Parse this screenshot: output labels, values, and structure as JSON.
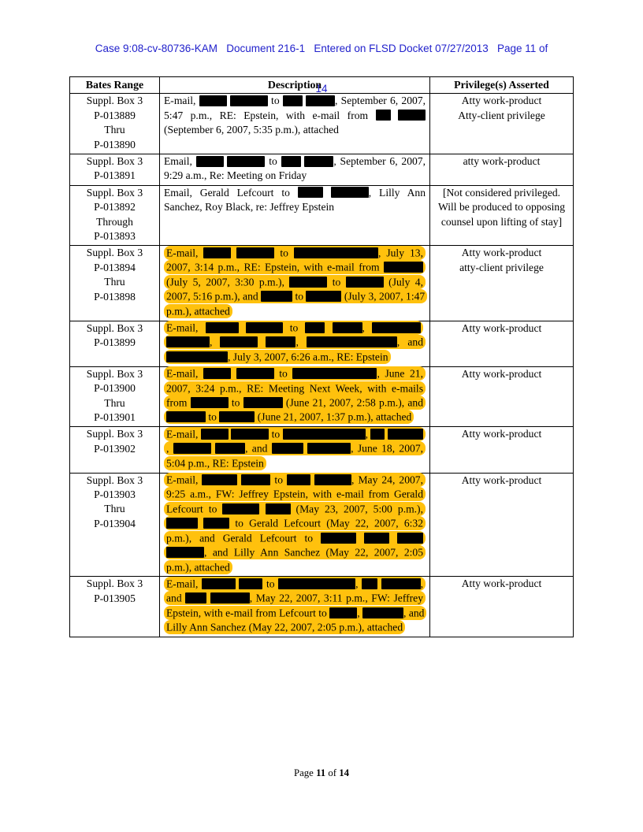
{
  "colors": {
    "header_blue": "#2222CC",
    "highlight": "#FFC10D",
    "redaction": "#000000"
  },
  "case_header": {
    "line1": "Case 9:08-cv-80736-KAM   Document 216-1   Entered on FLSD Docket 07/27/2013   Page 11 of",
    "line2": "14"
  },
  "table": {
    "columns": [
      "Bates Range",
      "Description",
      "Privilege(s) Asserted"
    ],
    "rows": [
      {
        "bates": [
          "Suppl. Box 3",
          "P-013889",
          "Thru",
          "P-013890"
        ],
        "highlight": false,
        "description": [
          {
            "t": "E-mail, "
          },
          {
            "r": 35
          },
          {
            "t": " "
          },
          {
            "r": 48
          },
          {
            "t": " to "
          },
          {
            "r": 25
          },
          {
            "t": " "
          },
          {
            "r": 37
          },
          {
            "t": ", September 6, 2007, 5:47 p.m., RE: Epstein, with e-mail from "
          },
          {
            "r": 19
          },
          {
            "t": " "
          },
          {
            "r": 35
          },
          {
            "t": " (September 6, 2007, 5:35 p.m.), attached"
          }
        ],
        "privilege": [
          "Atty work-product",
          "Atty-client privilege"
        ]
      },
      {
        "bates": [
          "Suppl. Box 3",
          "P-013891"
        ],
        "highlight": false,
        "description": [
          {
            "t": "Email, "
          },
          {
            "r": 35
          },
          {
            "t": " "
          },
          {
            "r": 48
          },
          {
            "t": " to "
          },
          {
            "r": 25
          },
          {
            "t": " "
          },
          {
            "r": 37
          },
          {
            "t": ", September 6, 2007, 9:29 a.m., Re: Meeting on Friday"
          }
        ],
        "privilege": [
          "atty work-product"
        ]
      },
      {
        "bates": [
          "Suppl. Box 3",
          "P-013892",
          "Through",
          "P-013893"
        ],
        "highlight": false,
        "description": [
          {
            "t": "Email, Gerald Lefcourt to "
          },
          {
            "r": 32
          },
          {
            "t": " "
          },
          {
            "r": 48
          },
          {
            "t": ", Lilly Ann Sanchez, Roy Black, re: Jeffrey Epstein"
          }
        ],
        "privilege": [
          "[Not considered privileged.  Will be produced to opposing counsel upon lifting of stay]"
        ]
      },
      {
        "bates": [
          "Suppl. Box 3",
          "P-013894",
          "Thru",
          "P-013898"
        ],
        "highlight": true,
        "description": [
          {
            "t": "E-mail, "
          },
          {
            "r": 35
          },
          {
            "t": " "
          },
          {
            "r": 48
          },
          {
            "t": " to "
          },
          {
            "r": 107
          },
          {
            "t": ", July 13, 2007, 3:14 p.m., RE: Epstein, with e-mail from "
          },
          {
            "r": 50
          },
          {
            "t": " (July 5, 2007, 3:30 p.m.), "
          },
          {
            "r": 48
          },
          {
            "t": " to "
          },
          {
            "r": 48
          },
          {
            "t": " (July 4, 2007, 5:16 p.m.), and "
          },
          {
            "r": 40
          },
          {
            "t": " to "
          },
          {
            "r": 45
          },
          {
            "t": " (July 3, 2007, 1:47 p.m.), attached"
          }
        ],
        "privilege": [
          "Atty work-product",
          "atty-client privilege"
        ]
      },
      {
        "bates": [
          "Suppl. Box 3",
          "P-013899"
        ],
        "highlight": true,
        "description": [
          {
            "t": "E-mail, "
          },
          {
            "r": 42
          },
          {
            "t": " "
          },
          {
            "r": 47
          },
          {
            "t": " to "
          },
          {
            "r": 25
          },
          {
            "t": " "
          },
          {
            "r": 38
          },
          {
            "t": ", "
          },
          {
            "r": 62
          },
          {
            "t": " "
          },
          {
            "r": 55
          },
          {
            "t": ", "
          },
          {
            "r": 48
          },
          {
            "t": " "
          },
          {
            "r": 38
          },
          {
            "t": ", "
          },
          {
            "r": 115
          },
          {
            "t": ", and "
          },
          {
            "r": 78
          },
          {
            "t": ", July 3, 2007, 6:26 a.m., RE: Epstein"
          }
        ],
        "privilege": [
          "Atty work-product"
        ]
      },
      {
        "bates": [
          "Suppl. Box 3",
          "P-013900",
          "Thru",
          "P-013901"
        ],
        "highlight": true,
        "description": [
          {
            "t": "E-mail, "
          },
          {
            "r": 35
          },
          {
            "t": " "
          },
          {
            "r": 48
          },
          {
            "t": " to "
          },
          {
            "r": 107
          },
          {
            "t": ", June 21, 2007, 3:24 p.m., RE: Meeting Next Week, with e-mails from "
          },
          {
            "r": 48
          },
          {
            "t": " to "
          },
          {
            "r": 50
          },
          {
            "t": " (June 21, 2007, 2:58 p.m.), and "
          },
          {
            "r": 50
          },
          {
            "t": " to "
          },
          {
            "r": 45
          },
          {
            "t": " (June 21, 2007, 1:37 p.m.), attached"
          }
        ],
        "privilege": [
          "Atty work-product"
        ]
      },
      {
        "bates": [
          "Suppl. Box 3",
          "P-013902"
        ],
        "highlight": true,
        "description": [
          {
            "t": "E-mail, "
          },
          {
            "r": 35
          },
          {
            "t": " "
          },
          {
            "r": 48
          },
          {
            "t": " to "
          },
          {
            "r": 105
          },
          {
            "t": ", "
          },
          {
            "r": 18
          },
          {
            "t": " "
          },
          {
            "r": 45
          },
          {
            "t": ", "
          },
          {
            "r": 48
          },
          {
            "t": " "
          },
          {
            "r": 38
          },
          {
            "t": ", and "
          },
          {
            "r": 40
          },
          {
            "t": " "
          },
          {
            "r": 55
          },
          {
            "t": ", June 18, 2007, 5:04 p.m., RE: Epstein"
          }
        ],
        "privilege": [
          "Atty work-product"
        ]
      },
      {
        "bates": [
          "Suppl. Box 3",
          "P-013903",
          "Thru",
          "P-013904"
        ],
        "highlight": true,
        "description": [
          {
            "t": "E-mail, "
          },
          {
            "r": 45
          },
          {
            "t": " "
          },
          {
            "r": 37
          },
          {
            "t": " to "
          },
          {
            "r": 30
          },
          {
            "t": " "
          },
          {
            "r": 47
          },
          {
            "t": ", May 24, 2007, 9:25 a.m., FW: Jeffrey Epstein, with e-mail from Gerald Lefcourt to "
          },
          {
            "r": 47
          },
          {
            "t": " "
          },
          {
            "r": 32
          },
          {
            "t": " (May 23, 2007, 5:00 p.m.), "
          },
          {
            "r": 40
          },
          {
            "t": " "
          },
          {
            "r": 33
          },
          {
            "t": " to Gerald Lefcourt (May 22, 2007, 6:32 p.m.), and Gerald Lefcourt to "
          },
          {
            "r": 45
          },
          {
            "t": " "
          },
          {
            "r": 32
          },
          {
            "t": " "
          },
          {
            "r": 33
          },
          {
            "t": " "
          },
          {
            "r": 48
          },
          {
            "t": ", and Lilly Ann Sanchez (May 22, 2007, 2:05 p.m.), attached"
          }
        ],
        "privilege": [
          "Atty work-product"
        ]
      },
      {
        "bates": [
          "Suppl. Box 3",
          "P-013905"
        ],
        "highlight": true,
        "description": [
          {
            "t": "E-mail, "
          },
          {
            "r": 43
          },
          {
            "t": " "
          },
          {
            "r": 30
          },
          {
            "t": " to "
          },
          {
            "r": 98
          },
          {
            "t": ", "
          },
          {
            "r": 20
          },
          {
            "t": " "
          },
          {
            "r": 50
          },
          {
            "t": ", and "
          },
          {
            "r": 27
          },
          {
            "t": " "
          },
          {
            "r": 50
          },
          {
            "t": ", May 22, 2007, 3:11 p.m., FW: Jeffrey Epstein, with e-mail from Lefcourt to "
          },
          {
            "r": 35
          },
          {
            "t": ", "
          },
          {
            "r": 52
          },
          {
            "t": ", and Lilly Ann Sanchez (May 22, 2007, 2:05 p.m.), attached"
          }
        ],
        "privilege": [
          "Atty work-product"
        ]
      }
    ]
  },
  "footer": {
    "label": "Page ",
    "page": "11",
    "of": " of ",
    "total": "14"
  }
}
